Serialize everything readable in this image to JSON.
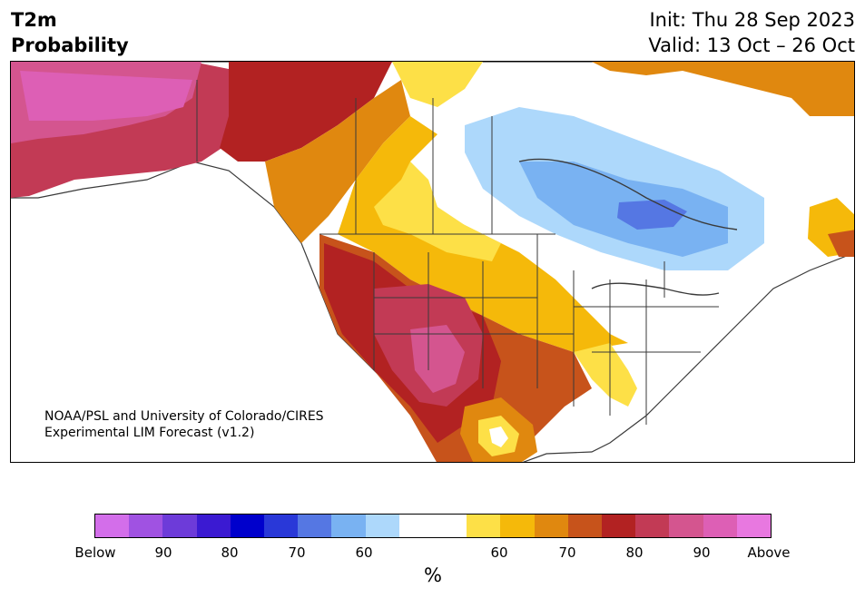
{
  "header": {
    "title_line1": "T2m",
    "title_line2": "Probability",
    "init": "Init: Thu 28 Sep 2023",
    "valid": "Valid: 13 Oct – 26 Oct"
  },
  "map": {
    "region": "North America",
    "credit_line1": "NOAA/PSL and University of Colorado/CIRES",
    "credit_line2": "Experimental LIM Forecast (v1.2)",
    "colors": {
      "water": "#ffffff",
      "land_neutral": "#ffffff",
      "border": "#3a3a3a",
      "above_60": "#fde047",
      "above_65": "#f5b90a",
      "above_70": "#e0880f",
      "above_75": "#c7531b",
      "above_80": "#b22222",
      "above_85": "#c23a55",
      "above_90": "#d4558f",
      "below_60": "#add8fb",
      "below_70": "#79b2f2",
      "below_75": "#5577e3"
    }
  },
  "colorbar": {
    "unit": "%",
    "colors": [
      "#d36eea",
      "#a052e2",
      "#6d3bd9",
      "#3b1ad2",
      "#0000cc",
      "#2938d8",
      "#5577e3",
      "#79b2f2",
      "#add8fb",
      "#ffffff",
      "#ffffff",
      "#fde047",
      "#f5b90a",
      "#e0880f",
      "#c7531b",
      "#b22222",
      "#c23a55",
      "#d4558f",
      "#dd5fb5",
      "#e878e0"
    ],
    "ticks": [
      "Below",
      "90",
      "80",
      "70",
      "60",
      "60",
      "70",
      "80",
      "90",
      "Above"
    ]
  }
}
